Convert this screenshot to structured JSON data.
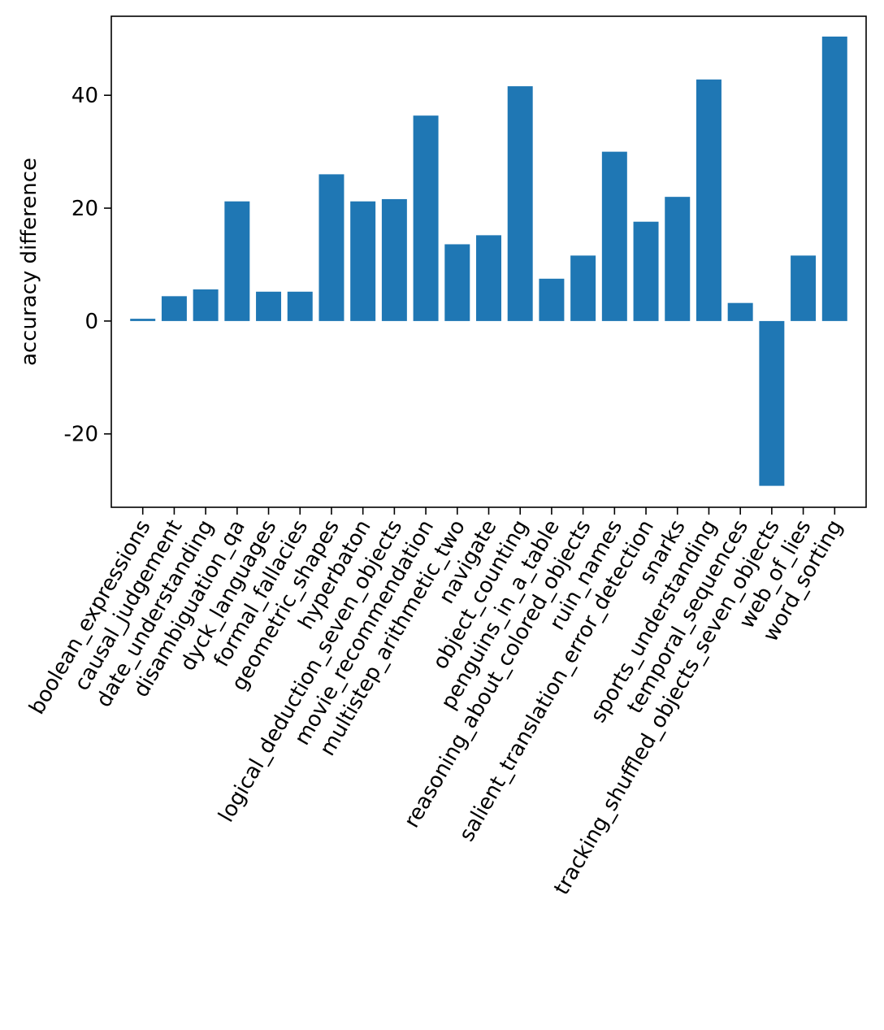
{
  "chart_data": {
    "type": "bar",
    "title": "",
    "xlabel": "",
    "ylabel": "accuracy difference",
    "ylim": [
      -33,
      54
    ],
    "yticks": [
      -20,
      0,
      20,
      40
    ],
    "ytick_labels": [
      "-20",
      "0",
      "20",
      "40"
    ],
    "bar_color": "#1f77b4",
    "grid": false,
    "categories": [
      "boolean_expressions",
      "causal_judgement",
      "date_understanding",
      "disambiguation_qa",
      "dyck_languages",
      "formal_fallacies",
      "geometric_shapes",
      "hyperbaton",
      "logical_deduction_seven_objects",
      "movie_recommendation",
      "multistep_arithmetic_two",
      "navigate",
      "object_counting",
      "penguins_in_a_table",
      "reasoning_about_colored_objects",
      "ruin_names",
      "salient_translation_error_detection",
      "snarks",
      "sports_understanding",
      "temporal_sequences",
      "tracking_shuffled_objects_seven_objects",
      "web_of_lies",
      "word_sorting"
    ],
    "values": [
      0.4,
      4.4,
      5.6,
      21.2,
      5.2,
      5.2,
      26.0,
      21.2,
      21.6,
      36.4,
      13.6,
      15.2,
      41.6,
      7.5,
      11.6,
      30.0,
      17.6,
      22.0,
      42.8,
      3.2,
      -29.2,
      11.6,
      50.4
    ]
  }
}
